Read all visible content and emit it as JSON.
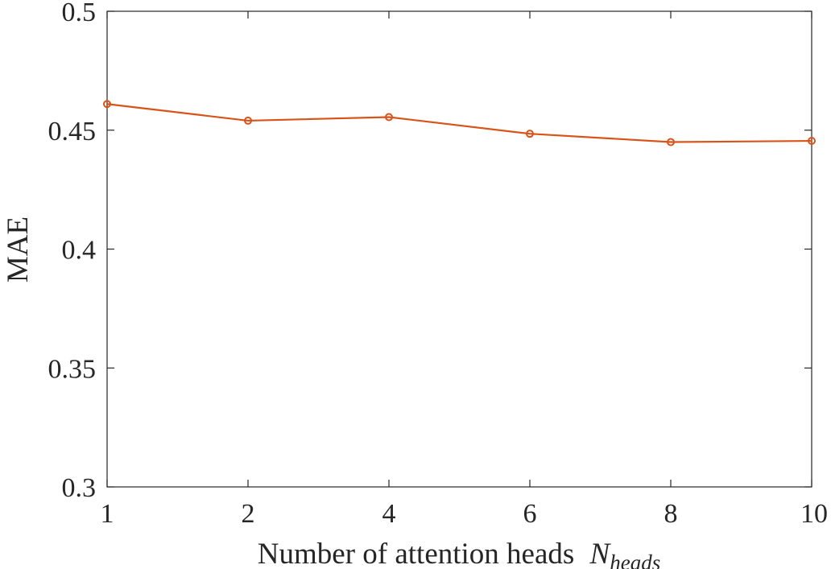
{
  "chart_data": {
    "type": "line",
    "categories": [
      "1",
      "2",
      "4",
      "6",
      "8",
      "10"
    ],
    "series": [
      {
        "values": [
          0.461,
          0.454,
          0.4555,
          0.4485,
          0.445,
          0.4455
        ],
        "color": "#D95319",
        "marker": "circle"
      }
    ],
    "xlabel": "Number of attention heads",
    "xlabel_var": "N",
    "xlabel_sub": "heads",
    "ylabel": "MAE",
    "ylim": [
      0.3,
      0.5
    ],
    "yticks": [
      "0.3",
      "0.35",
      "0.4",
      "0.45",
      "0.5"
    ],
    "grid": false,
    "box": true
  }
}
